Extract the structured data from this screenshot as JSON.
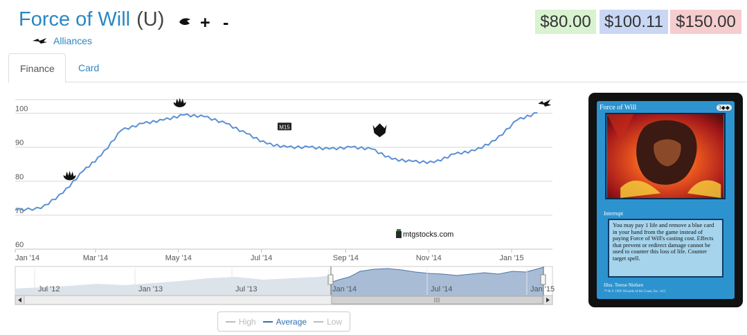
{
  "card": {
    "name": "Force of Will",
    "rarity": "(U)",
    "set_name": "Alliances",
    "add_label": "+",
    "remove_label": "-"
  },
  "prices": {
    "low": "$80.00",
    "average": "$100.11",
    "high": "$150.00",
    "colors": {
      "low": "#d9f2d0",
      "average": "#c9d7f5",
      "high": "#f5cdcf"
    }
  },
  "tabs": [
    {
      "label": "Finance",
      "active": true
    },
    {
      "label": "Card",
      "active": false
    }
  ],
  "watermark": "mtgstocks.com",
  "chart_data": {
    "type": "line",
    "y_ticks": [
      "60",
      "70",
      "80",
      "90",
      "100"
    ],
    "ylim": [
      60,
      104
    ],
    "x_ticks": [
      "Jan '14",
      "Mar '14",
      "May '14",
      "Jul '14",
      "Sep '14",
      "Nov '14",
      "Jan '15"
    ],
    "x": [
      "2014-01-01",
      "2014-01-20",
      "2014-02-05",
      "2014-02-20",
      "2014-03-05",
      "2014-03-20",
      "2014-04-05",
      "2014-04-20",
      "2014-05-05",
      "2014-05-20",
      "2014-06-05",
      "2014-06-20",
      "2014-07-05",
      "2014-07-20",
      "2014-08-05",
      "2014-08-20",
      "2014-09-05",
      "2014-09-20",
      "2014-10-05",
      "2014-10-20",
      "2014-11-05",
      "2014-11-20",
      "2014-12-05",
      "2014-12-20",
      "2015-01-05",
      "2015-01-20"
    ],
    "series": [
      {
        "name": "Average",
        "color": "#5b8fd2",
        "values": [
          71.5,
          72,
          76.5,
          83,
          87.5,
          95,
          97,
          98,
          99.5,
          99,
          97,
          94,
          91,
          90,
          90,
          89.5,
          90,
          89.5,
          86.5,
          85.8,
          85.5,
          88,
          89,
          92,
          98,
          100.1
        ]
      }
    ],
    "legend": {
      "position": "bottom",
      "items": [
        {
          "label": "High",
          "color": "#bbbbbb"
        },
        {
          "label": "Average",
          "color": "#2f6fb3"
        },
        {
          "label": "Low",
          "color": "#bbbbbb"
        }
      ]
    },
    "grid": true,
    "navigator_ticks": [
      "Jul '12",
      "Jan '13",
      "Jul '13",
      "Jan '14",
      "Jul '14",
      "Jan '15"
    ],
    "event_icons": [
      {
        "x": "2014-02-10",
        "y": 81,
        "icon": "born-of-the-gods-icon"
      },
      {
        "x": "2014-05-02",
        "y": 102.5,
        "icon": "journey-into-nyx-icon"
      },
      {
        "x": "2014-07-18",
        "y": 96,
        "icon": "m15-icon"
      },
      {
        "x": "2014-09-26",
        "y": 95,
        "icon": "khans-of-tarkir-icon"
      },
      {
        "x": "2015-01-25",
        "y": 103,
        "icon": "alliances-icon"
      }
    ]
  },
  "card_image": {
    "title": "Force of Will",
    "mana": "3◆◆",
    "type_line": "Interrupt",
    "rules_text": "You may pay 1 life and remove a blue card in your hand from the game instead of paying Force of Will's casting cost. Effects that prevent or redirect damage cannot be used to counter this loss of life. Counter target spell.",
    "illustrator": "Illus. Terese Nielsen",
    "copyright": "™ & © 1995 Wizards of the Coast, Inc. 14/1"
  }
}
